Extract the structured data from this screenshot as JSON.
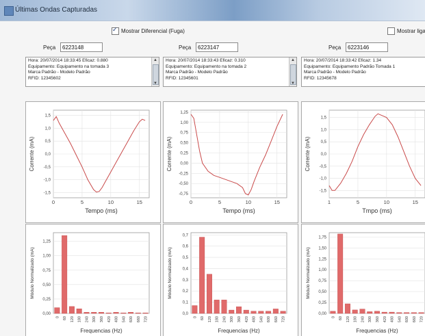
{
  "window": {
    "title": "Últimas Ondas Capturadas"
  },
  "toolbar": {
    "diff_checkbox_label": "Mostrar Diferencial (Fuga)",
    "diff_checked": true,
    "right_checkbox_label": "Mostrar liga",
    "right_checked": false
  },
  "columns": [
    {
      "peca_label": "Peça",
      "peca_value": "6223148",
      "info_lines": [
        "Hora: 20/07/2014 18:33:45 Eficaz: 0.880",
        "Equipamento: Equipamento na tomada 3",
        "Marca Padrão - Modelo Padrão",
        "RFID: 12345602"
      ]
    },
    {
      "peca_label": "Peça",
      "peca_value": "6223147",
      "info_lines": [
        "Hora: 20/07/2014 18:33:43 Eficaz: 0.310",
        "Equipamento: Equipamento na tomada 2",
        "Marca Padrão - Modelo Padrão",
        "RFID: 12345601"
      ]
    },
    {
      "peca_label": "Peça",
      "peca_value": "6223146",
      "info_lines": [
        "Hora: 20/07/2014 18:33:42 Eficaz: 1.34",
        "Equipamento: Equipamento Padrão Tomada 1",
        "Marca Padrão - Modelo Padrão",
        "RFID: 12345678"
      ]
    }
  ],
  "chart_data": [
    {
      "type": "line",
      "xlabel": "Tempo (ms)",
      "ylabel": "Corrente (mA)",
      "xlim": [
        0,
        16.7
      ],
      "ylim": [
        -1.7,
        1.7
      ],
      "xticks": [
        "0",
        "5",
        "10",
        "15"
      ],
      "yticks": [
        "1,5",
        "1,0",
        "0,5",
        "0,0",
        "-0,5",
        "-1,0",
        "-1,5"
      ],
      "ytick_values": [
        1.5,
        1.0,
        0.5,
        0.0,
        -0.5,
        -1.0,
        -1.5
      ],
      "x": [
        0,
        0.5,
        1,
        2,
        3,
        4,
        5,
        6,
        7,
        7.5,
        8,
        8.5,
        9,
        10,
        11,
        12,
        13,
        14,
        15,
        15.5,
        16
      ],
      "y": [
        1.3,
        1.45,
        1.2,
        0.8,
        0.4,
        -0.05,
        -0.5,
        -1.0,
        -1.38,
        -1.48,
        -1.45,
        -1.3,
        -1.1,
        -0.7,
        -0.3,
        0.1,
        0.5,
        0.9,
        1.25,
        1.35,
        1.3
      ],
      "color": "#c94a4a"
    },
    {
      "type": "line",
      "xlabel": "Tempo (ms)",
      "ylabel": "Corrente (mA)",
      "xlim": [
        0,
        16.7
      ],
      "ylim": [
        -0.85,
        1.3
      ],
      "xticks": [
        "0",
        "5",
        "10",
        "15"
      ],
      "yticks": [
        "1,25",
        "1,00",
        "0,75",
        "0,50",
        "0,25",
        "0,00",
        "-0,25",
        "-0,50",
        "-0,75"
      ],
      "ytick_values": [
        1.25,
        1.0,
        0.75,
        0.5,
        0.25,
        0.0,
        -0.25,
        -0.5,
        -0.75
      ],
      "x": [
        0,
        0.5,
        1,
        1.5,
        2,
        3,
        4,
        5,
        6,
        7,
        8,
        9,
        9.5,
        10,
        10.5,
        11,
        12,
        13,
        14,
        15,
        16
      ],
      "y": [
        1.2,
        1.1,
        0.7,
        0.3,
        0.0,
        -0.2,
        -0.3,
        -0.35,
        -0.4,
        -0.45,
        -0.5,
        -0.6,
        -0.75,
        -0.78,
        -0.65,
        -0.45,
        -0.1,
        0.2,
        0.55,
        0.9,
        1.2
      ],
      "color": "#c94a4a"
    },
    {
      "type": "line",
      "xlabel": "Tmpo (ms)",
      "ylabel": "Corrente (mA)",
      "xlim": [
        0,
        16.7
      ],
      "ylim": [
        -1.8,
        1.8
      ],
      "xticks": [
        "1",
        "5",
        "10",
        "15"
      ],
      "yticks": [
        "1,5",
        "1,0",
        "0,5",
        "0,0",
        "-0,5",
        "-1,0",
        "-1,5"
      ],
      "ytick_values": [
        1.5,
        1.0,
        0.5,
        0.0,
        -0.5,
        -1.0,
        -1.5
      ],
      "x": [
        0,
        0.5,
        1,
        2,
        3,
        4,
        5,
        6,
        7,
        8,
        8.5,
        9,
        10,
        11,
        12,
        13,
        14,
        15,
        16
      ],
      "y": [
        -1.3,
        -1.5,
        -1.5,
        -1.2,
        -0.8,
        -0.3,
        0.3,
        0.8,
        1.2,
        1.55,
        1.65,
        1.6,
        1.5,
        1.2,
        0.7,
        0.1,
        -0.5,
        -1.0,
        -1.3
      ],
      "color": "#c94a4a"
    },
    {
      "type": "bar",
      "xlabel": "Frequencias (Hz)",
      "ylabel": "Módulo Normalizado (mA)",
      "ylim": [
        0,
        1.4
      ],
      "yticks": [
        "1,25",
        "1,00",
        "0,75",
        "0,50",
        "0,25",
        "0,00"
      ],
      "ytick_values": [
        1.25,
        1.0,
        0.75,
        0.5,
        0.25,
        0.0
      ],
      "categories": [
        "0",
        "60",
        "120",
        "180",
        "240",
        "300",
        "360",
        "420",
        "480",
        "540",
        "600",
        "660",
        "720"
      ],
      "values": [
        0.1,
        1.35,
        0.12,
        0.08,
        0.02,
        0.02,
        0.02,
        0.01,
        0.02,
        0.01,
        0.02,
        0.01,
        0.01
      ],
      "color": "#e06a6a"
    },
    {
      "type": "bar",
      "xlabel": "Frequencias (Hz)",
      "ylabel": "Módulo Normalizado (mA)",
      "ylim": [
        0,
        0.72
      ],
      "yticks": [
        "0,7",
        "0,6",
        "0,5",
        "0,4",
        "0,3",
        "0,2",
        "0,1",
        "0,0"
      ],
      "ytick_values": [
        0.7,
        0.6,
        0.5,
        0.4,
        0.3,
        0.2,
        0.1,
        0.0
      ],
      "categories": [
        "0",
        "60",
        "120",
        "180",
        "240",
        "300",
        "360",
        "420",
        "480",
        "540",
        "600",
        "660",
        "720"
      ],
      "values": [
        0.07,
        0.68,
        0.35,
        0.12,
        0.12,
        0.03,
        0.06,
        0.03,
        0.02,
        0.02,
        0.02,
        0.04,
        0.02
      ],
      "color": "#e06a6a"
    },
    {
      "type": "bar",
      "xlabel": "Frequencias (Hz)",
      "ylabel": "Módulo Normalizado (mA)",
      "ylim": [
        0,
        1.85
      ],
      "yticks": [
        "1,75",
        "1,50",
        "1,25",
        "1,00",
        "0,75",
        "0,50",
        "0,25",
        "0,00"
      ],
      "ytick_values": [
        1.75,
        1.5,
        1.25,
        1.0,
        0.75,
        0.5,
        0.25,
        0.0
      ],
      "categories": [
        "0",
        "60",
        "120",
        "180",
        "240",
        "300",
        "360",
        "420",
        "480",
        "540",
        "600",
        "660",
        "720"
      ],
      "values": [
        0.05,
        1.82,
        0.22,
        0.08,
        0.1,
        0.04,
        0.05,
        0.03,
        0.03,
        0.02,
        0.02,
        0.02,
        0.02
      ],
      "color": "#e06a6a"
    }
  ]
}
